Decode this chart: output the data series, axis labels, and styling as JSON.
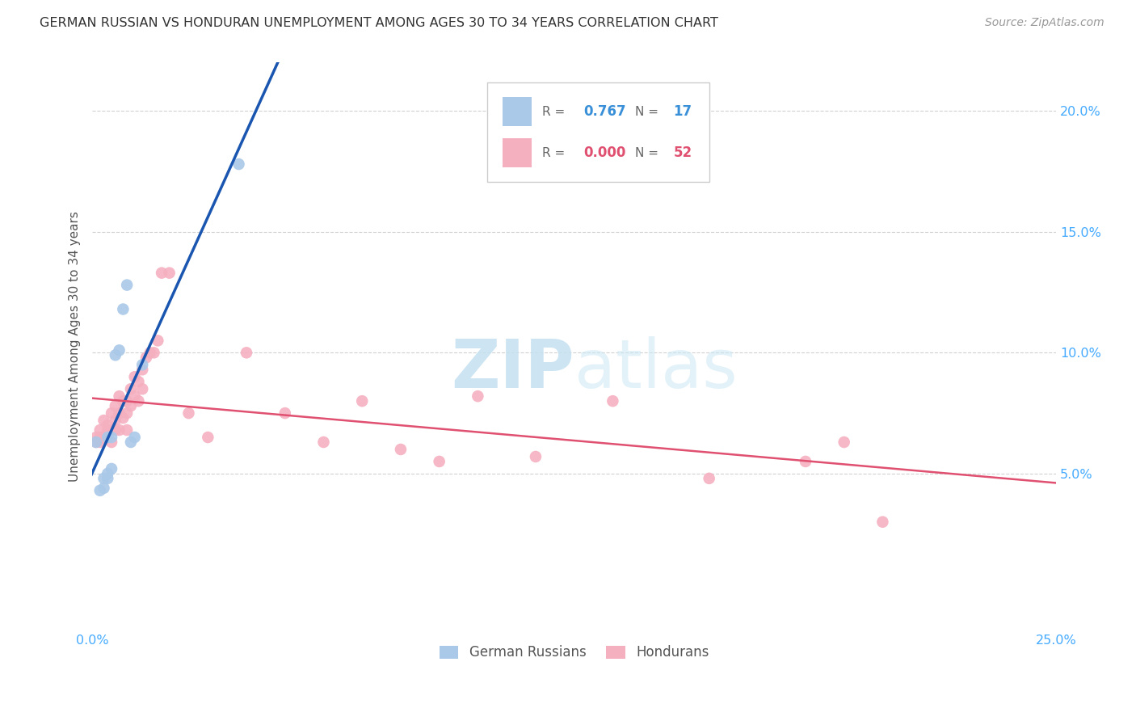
{
  "title": "GERMAN RUSSIAN VS HONDURAN UNEMPLOYMENT AMONG AGES 30 TO 34 YEARS CORRELATION CHART",
  "source": "Source: ZipAtlas.com",
  "ylabel": "Unemployment Among Ages 30 to 34 years",
  "xlim": [
    0.0,
    0.25
  ],
  "ylim": [
    -0.015,
    0.22
  ],
  "xtick_positions": [
    0.0,
    0.05,
    0.1,
    0.15,
    0.2,
    0.25
  ],
  "xtick_labels": [
    "0.0%",
    "",
    "",
    "",
    "",
    "25.0%"
  ],
  "ytick_positions": [
    0.05,
    0.1,
    0.15,
    0.2
  ],
  "ytick_labels": [
    "5.0%",
    "10.0%",
    "15.0%",
    "20.0%"
  ],
  "legend_R_blue": "0.767",
  "legend_N_blue": "17",
  "legend_R_pink": "0.000",
  "legend_N_pink": "52",
  "blue_scatter_color": "#aac8e8",
  "pink_scatter_color": "#f5b0c0",
  "trendline_blue_color": "#1a56b0",
  "trendline_pink_color": "#e05070",
  "watermark_color": "#d8eef8",
  "german_russian_x": [
    0.001,
    0.002,
    0.003,
    0.003,
    0.004,
    0.004,
    0.004,
    0.005,
    0.005,
    0.006,
    0.007,
    0.008,
    0.009,
    0.01,
    0.011,
    0.013,
    0.038
  ],
  "german_russian_y": [
    0.063,
    0.043,
    0.048,
    0.044,
    0.05,
    0.048,
    0.065,
    0.052,
    0.065,
    0.099,
    0.101,
    0.118,
    0.128,
    0.063,
    0.065,
    0.095,
    0.178
  ],
  "honduran_x": [
    0.001,
    0.001,
    0.002,
    0.002,
    0.002,
    0.003,
    0.003,
    0.004,
    0.004,
    0.005,
    0.005,
    0.005,
    0.006,
    0.006,
    0.006,
    0.007,
    0.007,
    0.007,
    0.008,
    0.008,
    0.009,
    0.009,
    0.009,
    0.01,
    0.01,
    0.011,
    0.011,
    0.012,
    0.012,
    0.013,
    0.013,
    0.014,
    0.015,
    0.016,
    0.017,
    0.018,
    0.02,
    0.025,
    0.03,
    0.04,
    0.05,
    0.06,
    0.07,
    0.08,
    0.09,
    0.1,
    0.115,
    0.135,
    0.16,
    0.185,
    0.195,
    0.205
  ],
  "honduran_y": [
    0.063,
    0.065,
    0.065,
    0.063,
    0.068,
    0.072,
    0.065,
    0.068,
    0.07,
    0.075,
    0.068,
    0.063,
    0.072,
    0.068,
    0.078,
    0.082,
    0.075,
    0.068,
    0.08,
    0.073,
    0.08,
    0.075,
    0.068,
    0.085,
    0.078,
    0.09,
    0.082,
    0.088,
    0.08,
    0.093,
    0.085,
    0.098,
    0.1,
    0.1,
    0.105,
    0.133,
    0.133,
    0.075,
    0.065,
    0.1,
    0.075,
    0.063,
    0.08,
    0.06,
    0.055,
    0.082,
    0.057,
    0.08,
    0.048,
    0.055,
    0.063,
    0.03
  ]
}
